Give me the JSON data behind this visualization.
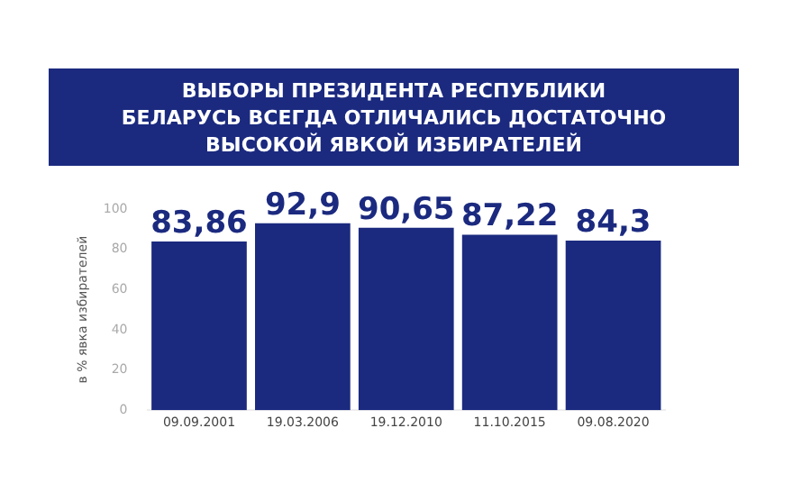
{
  "chart_data": {
    "type": "bar",
    "title": "ВЫБОРЫ ПРЕЗИДЕНТА РЕСПУБЛИКИ БЕЛАРУСЬ ВСЕГДА ОТЛИЧАЛИСЬ ДОСТАТОЧНО ВЫСОКОЙ ЯВКОЙ ИЗБИРАТЕЛЕЙ",
    "ylabel": "в % явка избирателей",
    "categories": [
      "09.09.2001",
      "19.03.2006",
      "19.12.2010",
      "11.10.2015",
      "09.08.2020"
    ],
    "values": [
      83.86,
      92.9,
      90.65,
      87.22,
      84.3
    ],
    "value_labels": [
      "83,86",
      "92,9",
      "90,65",
      "87,22",
      "84,3"
    ],
    "color": "#1b2a7f",
    "ylim": [
      0,
      100
    ],
    "yticks": [
      0,
      20,
      40,
      60,
      80,
      100
    ],
    "grid": false,
    "legend": false
  }
}
